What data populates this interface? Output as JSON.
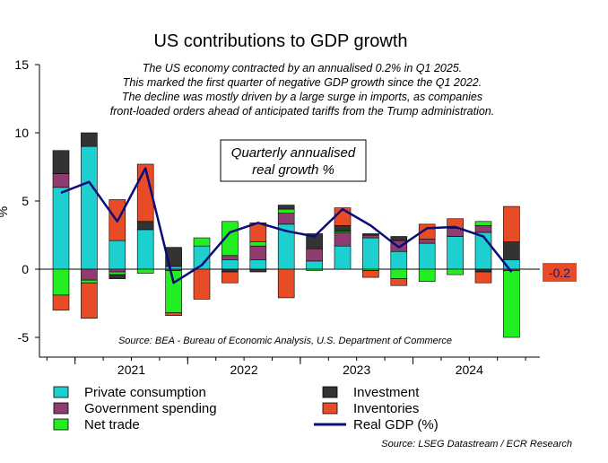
{
  "chart_data": {
    "type": "bar",
    "stacked": true,
    "title": "US contributions to GDP growth",
    "ylabel": "%",
    "ylim": [
      -5,
      15
    ],
    "yticks": [
      -5,
      0,
      5,
      10,
      15
    ],
    "year_labels": [
      "2021",
      "2022",
      "2023",
      "2024"
    ],
    "notes": [
      "The US economy contracted by an annualised 0.2% in Q1 2025.",
      "This marked the first quarter of negative GDP growth since the Q1 2022.",
      "The decline was mostly driven by a large surge in imports, as companies",
      "front-loaded orders ahead of anticipated tariffs from the Trump administration."
    ],
    "box_text": [
      "Quarterly annualised",
      "real growth %"
    ],
    "inner_source": "Source: BEA - Bureau of Economic Analysis, U.S. Department of Commerce",
    "source": "Source: LSEG Datastream / ECR Research",
    "last_value_label": "-0.2",
    "colors": {
      "private_consumption": "#1ecfd0",
      "government_spending": "#8e3d6e",
      "net_trade": "#22ee22",
      "investment": "#333333",
      "inventories": "#e84c26",
      "real_gdp": "#0b0b7a",
      "last_label_bg": "#e84c26"
    },
    "series": [
      {
        "name": "Private consumption",
        "key": "private_consumption",
        "values": [
          6.0,
          9.0,
          2.1,
          2.9,
          0.2,
          1.7,
          0.7,
          0.7,
          3.3,
          0.6,
          1.7,
          2.3,
          1.3,
          1.9,
          2.4,
          2.7,
          0.7
        ]
      },
      {
        "name": "Government spending",
        "key": "government_spending",
        "values": [
          1.0,
          -0.8,
          -0.2,
          0.0,
          -0.1,
          0.0,
          0.3,
          1.0,
          0.8,
          0.9,
          1.0,
          0.2,
          0.8,
          0.3,
          0.6,
          0.5,
          -0.1
        ]
      },
      {
        "name": "Net trade",
        "key": "net_trade",
        "values": [
          -1.9,
          -0.2,
          -0.2,
          -0.3,
          -3.1,
          0.6,
          2.5,
          0.3,
          0.3,
          -0.1,
          0.1,
          -0.1,
          -0.7,
          -0.9,
          -0.4,
          0.3,
          -4.9
        ]
      },
      {
        "name": "Investment",
        "key": "investment",
        "values": [
          1.7,
          1.0,
          -0.3,
          0.6,
          1.4,
          0.0,
          -0.2,
          -0.2,
          0.3,
          1.1,
          0.4,
          0.1,
          0.3,
          0.0,
          0.0,
          -0.2,
          1.3
        ]
      },
      {
        "name": "Inventories",
        "key": "inventories",
        "values": [
          -1.1,
          -2.6,
          3.0,
          4.2,
          -0.2,
          -2.2,
          -0.8,
          1.4,
          -2.1,
          0.0,
          1.3,
          -0.5,
          -0.5,
          1.1,
          0.7,
          -0.8,
          2.6
        ]
      }
    ],
    "line": {
      "name": "Real GDP (%)",
      "key": "real_gdp",
      "values": [
        5.6,
        6.4,
        3.5,
        7.4,
        -1.0,
        0.3,
        2.7,
        3.4,
        2.8,
        2.4,
        4.4,
        3.2,
        1.6,
        3.0,
        3.1,
        2.4,
        -0.2
      ]
    },
    "legend": [
      {
        "label": "Private consumption",
        "key": "private_consumption",
        "kind": "box"
      },
      {
        "label": "Investment",
        "key": "investment",
        "kind": "box"
      },
      {
        "label": "Government spending",
        "key": "government_spending",
        "kind": "box"
      },
      {
        "label": "Inventories",
        "key": "inventories",
        "kind": "box"
      },
      {
        "label": "Net trade",
        "key": "net_trade",
        "kind": "box"
      },
      {
        "label": "Real GDP (%)",
        "key": "real_gdp",
        "kind": "line"
      }
    ]
  }
}
